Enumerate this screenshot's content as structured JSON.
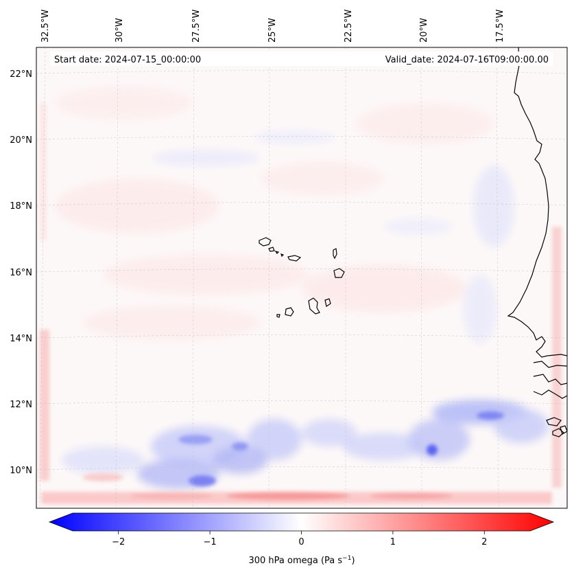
{
  "map": {
    "start_date": "Start date: 2024-07-15_00:00:00",
    "valid_date": "Valid_date: 2024-07-16T09:00:00.00",
    "lon_labels": [
      "32.5°W",
      "30°W",
      "27.5°W",
      "25°W",
      "22.5°W",
      "20°W",
      "17.5°W"
    ],
    "lat_labels": [
      "22°N",
      "20°N",
      "18°N",
      "16°N",
      "14°N",
      "12°N",
      "10°N"
    ]
  },
  "colorbar": {
    "ticks": [
      "−2",
      "−1",
      "0",
      "1",
      "2"
    ],
    "tick_values": [
      -2,
      -1,
      0,
      1,
      2
    ],
    "range": [
      -2.5,
      2.5
    ],
    "label_main": "300 hPa omega (Pa s",
    "label_sup": "−1",
    "label_end": ")",
    "low_color": "#0000ff",
    "mid_color": "#ffffff",
    "high_color": "#ff0000"
  }
}
